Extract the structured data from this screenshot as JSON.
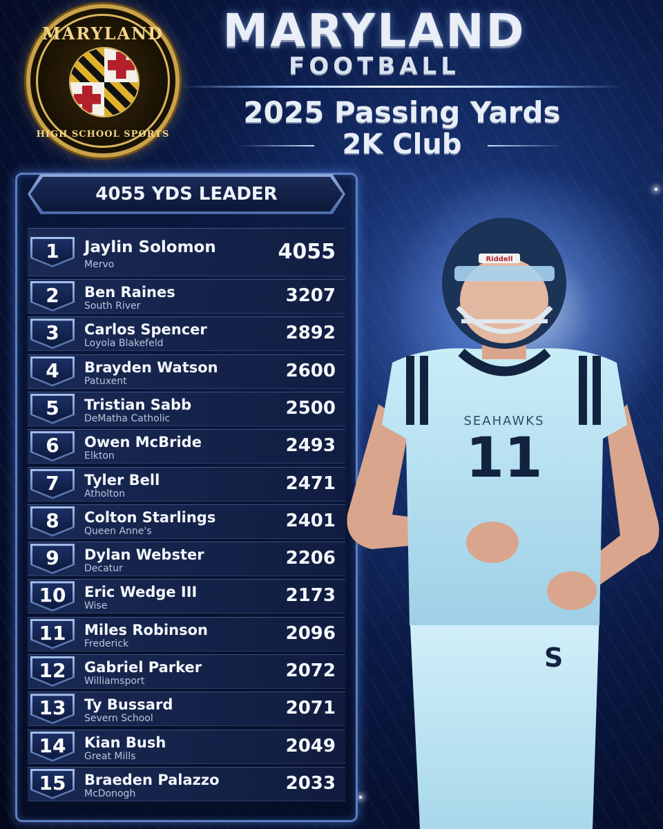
{
  "header": {
    "logo_top": "MARYLAND",
    "logo_bottom": "HIGH SCHOOL SPORTS",
    "title": "MARYLAND",
    "subtitle_small": "FOOTBALL",
    "headline": "2025 Passing Yards",
    "club": "2K Club"
  },
  "leader_banner": "4055 YDS LEADER",
  "jersey": {
    "team": "SEAHAWKS",
    "number": "11",
    "helmet_brand": "Riddell",
    "pants_letter": "S"
  },
  "colors": {
    "background": "#0a1a45",
    "board_border": "#5b7fc2",
    "jersey": "#b6e2f2",
    "navy": "#12233f"
  },
  "players": [
    {
      "rank": "1",
      "name": "Jaylin Solomon",
      "school": "Mervo",
      "yards": "4055"
    },
    {
      "rank": "2",
      "name": "Ben Raines",
      "school": "South River",
      "yards": "3207"
    },
    {
      "rank": "3",
      "name": "Carlos Spencer",
      "school": "Loyola Blakefeld",
      "yards": "2892"
    },
    {
      "rank": "4",
      "name": "Brayden Watson",
      "school": "Patuxent",
      "yards": "2600"
    },
    {
      "rank": "5",
      "name": "Tristian Sabb",
      "school": "DeMatha Catholic",
      "yards": "2500"
    },
    {
      "rank": "6",
      "name": "Owen McBride",
      "school": "Elkton",
      "yards": "2493"
    },
    {
      "rank": "7",
      "name": "Tyler Bell",
      "school": "Atholton",
      "yards": "2471"
    },
    {
      "rank": "8",
      "name": "Colton Starlings",
      "school": "Queen Anne's",
      "yards": "2401"
    },
    {
      "rank": "9",
      "name": "Dylan Webster",
      "school": "Decatur",
      "yards": "2206"
    },
    {
      "rank": "10",
      "name": "Eric Wedge III",
      "school": "Wise",
      "yards": "2173"
    },
    {
      "rank": "11",
      "name": "Miles Robinson",
      "school": "Frederick",
      "yards": "2096"
    },
    {
      "rank": "12",
      "name": "Gabriel Parker",
      "school": "Williamsport",
      "yards": "2072"
    },
    {
      "rank": "13",
      "name": "Ty Bussard",
      "school": "Severn School",
      "yards": "2071"
    },
    {
      "rank": "14",
      "name": "Kian Bush",
      "school": "Great Mills",
      "yards": "2049"
    },
    {
      "rank": "15",
      "name": "Braeden Palazzo",
      "school": "McDonogh",
      "yards": "2033"
    }
  ]
}
